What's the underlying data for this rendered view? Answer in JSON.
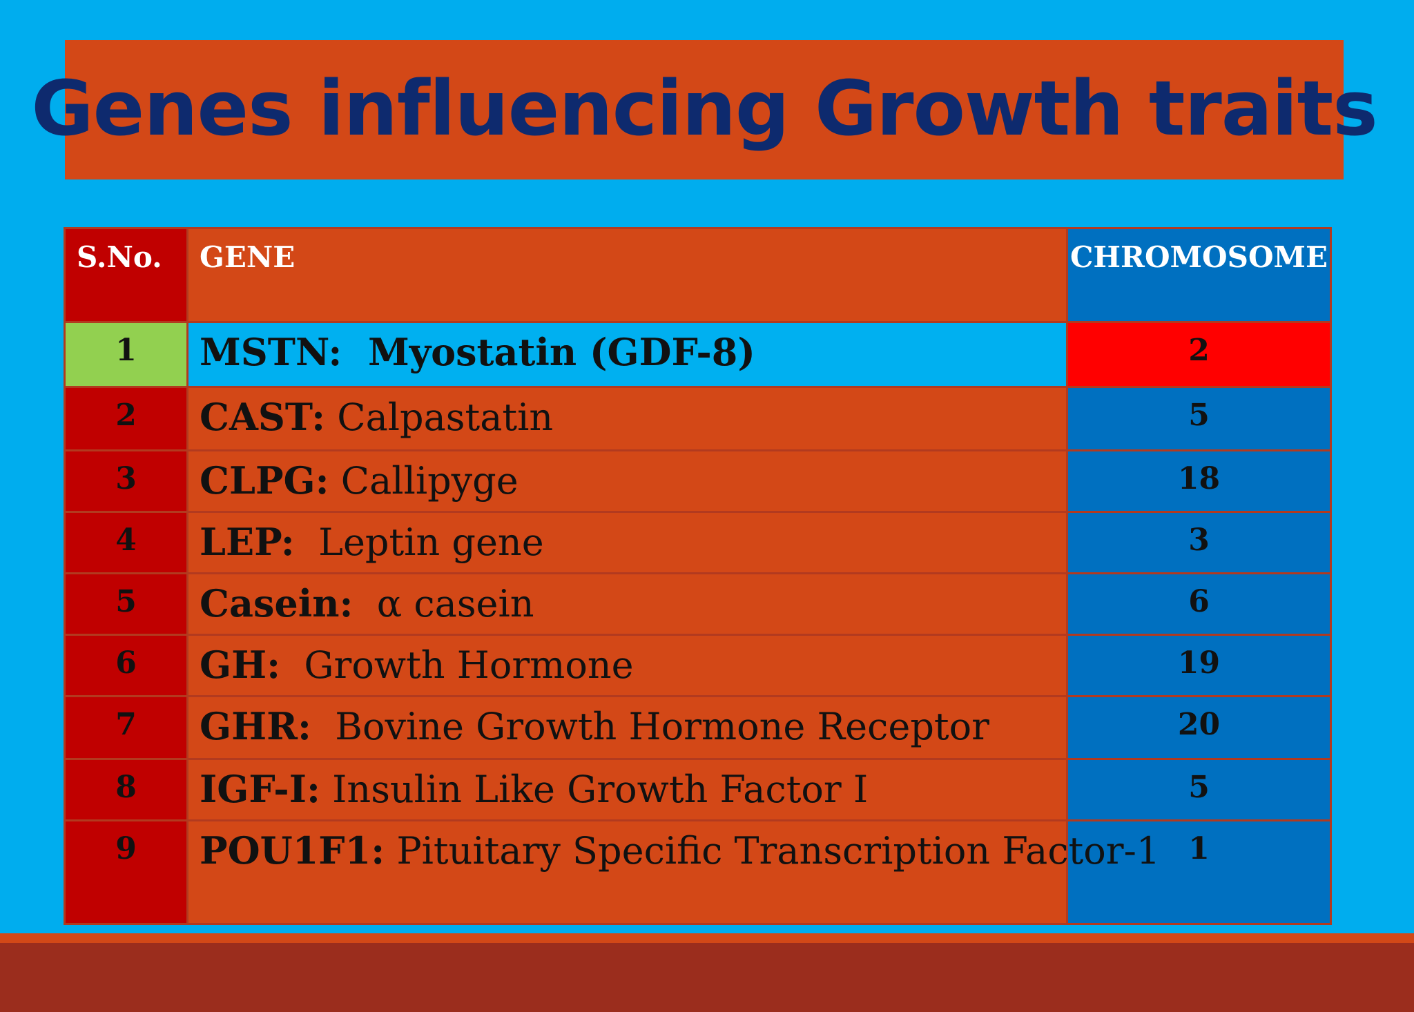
{
  "title": "Genes influencing Growth traits",
  "table": {
    "headers": {
      "sno": "S.No.",
      "gene": "GENE",
      "chromosome": "CHROMOSOME"
    },
    "rows": [
      {
        "sno": "1",
        "code": "MSTN:",
        "name": "Myostatin (GDF-8)",
        "chromosome": "2",
        "highlight": true
      },
      {
        "sno": "2",
        "code": "CAST:",
        "name": "Calpastatin",
        "chromosome": "5"
      },
      {
        "sno": "3",
        "code": "CLPG:",
        "name": "Callipyge",
        "chromosome": "18"
      },
      {
        "sno": "4",
        "code": "LEP:",
        "name": "Leptin gene",
        "chromosome": "3"
      },
      {
        "sno": "5",
        "code": "Casein:",
        "name": "α casein",
        "chromosome": "6"
      },
      {
        "sno": "6",
        "code": "GH:",
        "name": "Growth Hormone",
        "chromosome": "19"
      },
      {
        "sno": "7",
        "code": "GHR:",
        "name": "Bovine Growth Hormone Receptor",
        "chromosome": "20"
      },
      {
        "sno": "8",
        "code": "IGF-I:",
        "name": "Insulin Like Growth Factor I",
        "chromosome": "5"
      },
      {
        "sno": "9",
        "code": "POU1F1:",
        "name": "Pituitary Specific Transcription Factor-1",
        "chromosome": "1"
      }
    ]
  },
  "colors": {
    "background": "#00adee",
    "title_box": "#d34817",
    "title_text": "#0e2a6e",
    "sno_column": "#c00000",
    "gene_column": "#d34817",
    "chromosome_column": "#0070c0",
    "highlight_sno": "#92d050",
    "highlight_gene": "#00b0f0",
    "highlight_chromosome": "#ff0000",
    "footer_bar": "#9b2d1d"
  }
}
